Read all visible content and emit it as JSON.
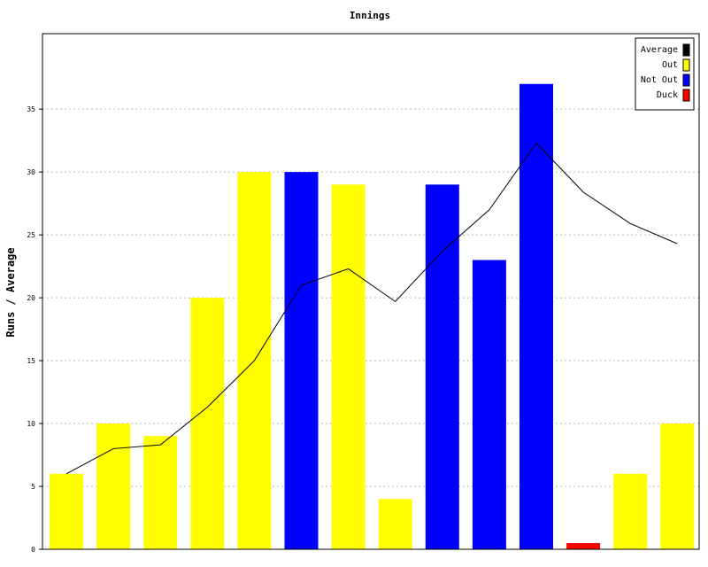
{
  "chart_data": {
    "type": "bar",
    "title": "Innings",
    "xlabel": "",
    "ylabel": "Runs / Average",
    "ylim": [
      0,
      41
    ],
    "yticks": [
      0,
      5,
      10,
      15,
      20,
      25,
      30,
      35
    ],
    "bars": [
      {
        "value": 6,
        "status": "Out"
      },
      {
        "value": 10,
        "status": "Out"
      },
      {
        "value": 9,
        "status": "Out"
      },
      {
        "value": 20,
        "status": "Out"
      },
      {
        "value": 30,
        "status": "Out"
      },
      {
        "value": 30,
        "status": "Not Out"
      },
      {
        "value": 29,
        "status": "Out"
      },
      {
        "value": 4,
        "status": "Out"
      },
      {
        "value": 29,
        "status": "Not Out"
      },
      {
        "value": 23,
        "status": "Not Out"
      },
      {
        "value": 37,
        "status": "Not Out"
      },
      {
        "value": 0,
        "status": "Duck"
      },
      {
        "value": 6,
        "status": "Out"
      },
      {
        "value": 10,
        "status": "Out"
      }
    ],
    "average": [
      6,
      8,
      8.3,
      11.3,
      15,
      21,
      22.3,
      19.7,
      23.7,
      27,
      32.3,
      28.4,
      25.9,
      24.3
    ],
    "legend": {
      "position": "top-right",
      "entries": [
        {
          "label": "Average",
          "color": "#000000"
        },
        {
          "label": "Out",
          "color": "#ffff00"
        },
        {
          "label": "Not Out",
          "color": "#0000ff"
        },
        {
          "label": "Duck",
          "color": "#ff0000"
        }
      ]
    },
    "colors": {
      "Out": "#ffff00",
      "Not Out": "#0000ff",
      "Duck": "#ff0000",
      "Average": "#000000"
    },
    "grid": "horizontal-dashed"
  }
}
